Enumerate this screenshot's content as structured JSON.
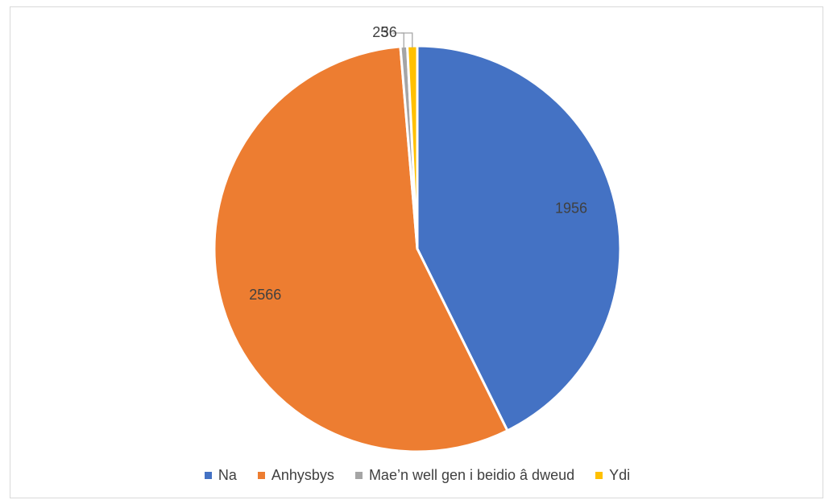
{
  "chart_data": {
    "type": "pie",
    "title": "",
    "slices": [
      {
        "label": "Na",
        "value": 1956,
        "color": "#4472C4"
      },
      {
        "label": "Anhysbys",
        "value": 2566,
        "color": "#ED7D31"
      },
      {
        "label": "Mae’n well gen i beidio â dweud",
        "value": 25,
        "color": "#A5A5A5"
      },
      {
        "label": "Ydi",
        "value": 36,
        "color": "#FFC000"
      }
    ],
    "start_slice": "Na",
    "direction": "clockwise",
    "legend_position": "bottom"
  }
}
